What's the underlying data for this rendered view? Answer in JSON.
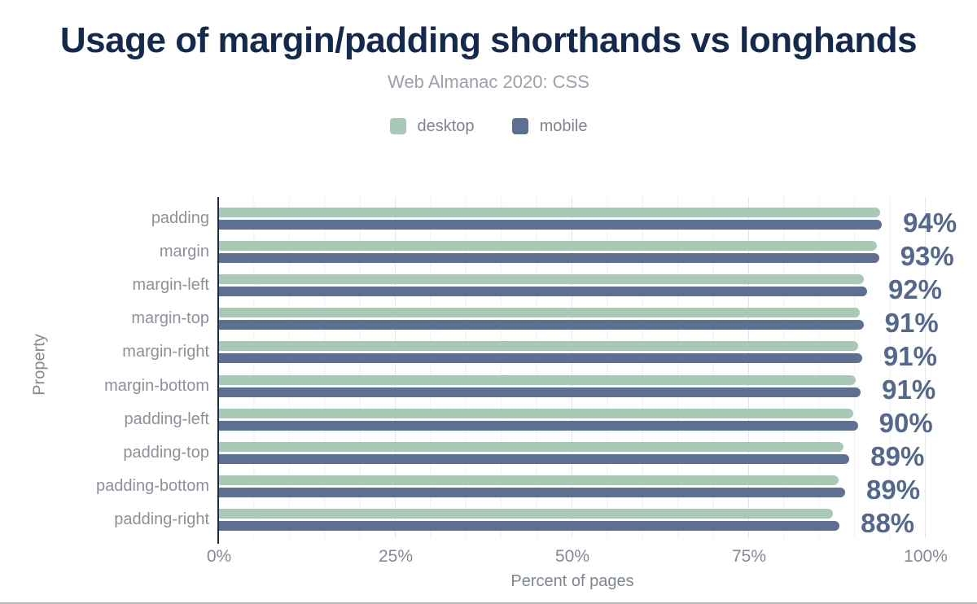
{
  "chart_data": {
    "type": "bar",
    "orientation": "horizontal",
    "title": "Usage of margin/padding shorthands vs longhands",
    "subtitle": "Web Almanac 2020: CSS",
    "xlabel": "Percent of pages",
    "ylabel": "Property",
    "xlim": [
      0,
      100
    ],
    "xticks": [
      "0%",
      "25%",
      "50%",
      "75%",
      "100%"
    ],
    "grid": "vertical",
    "legend_position": "top",
    "categories": [
      "padding",
      "margin",
      "margin-left",
      "margin-top",
      "margin-right",
      "margin-bottom",
      "padding-left",
      "padding-top",
      "padding-bottom",
      "padding-right"
    ],
    "series": [
      {
        "name": "desktop",
        "color": "#a9c9b7",
        "values": [
          93.5,
          93.1,
          91.2,
          90.7,
          90.4,
          90.1,
          89.7,
          88.4,
          87.7,
          86.9
        ]
      },
      {
        "name": "mobile",
        "color": "#5d7091",
        "values": [
          93.8,
          93.4,
          91.7,
          91.2,
          91.0,
          90.8,
          90.4,
          89.2,
          88.6,
          87.8
        ]
      }
    ],
    "value_labels": [
      "94%",
      "93%",
      "92%",
      "91%",
      "91%",
      "91%",
      "90%",
      "89%",
      "89%",
      "88%"
    ]
  },
  "colors": {
    "title": "#13294e",
    "subtitle": "#9ba1ab",
    "axis_line": "#1b2a4a",
    "tick_labels": "#828a97",
    "category_labels": "#8b919c",
    "value_labels": "#53688f",
    "desktop": "#a9c9b7",
    "mobile": "#5d7091",
    "gridline_major": "#e3e6ea",
    "gridline_minor": "#eef0f3"
  }
}
